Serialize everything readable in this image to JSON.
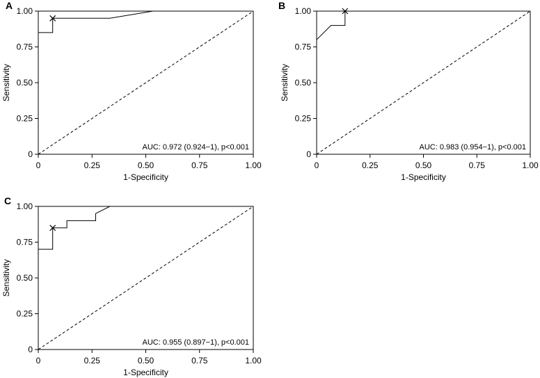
{
  "chart_data": [
    {
      "panel": "A",
      "type": "line",
      "title": "",
      "xlabel": "1-Specificity",
      "ylabel": "Sensitivity",
      "xlim": [
        0,
        1
      ],
      "ylim": [
        0,
        1
      ],
      "x_ticks": [
        0,
        0.25,
        0.5,
        0.75,
        1
      ],
      "x_tick_labels": [
        "0",
        "0.25",
        "0.50",
        "0.75",
        "1.00"
      ],
      "y_ticks": [
        0,
        0.25,
        0.5,
        0.75,
        1
      ],
      "y_tick_labels": [
        "0",
        "0.25",
        "0.50",
        "0.75",
        "1.00"
      ],
      "grid": false,
      "series": [
        {
          "name": "ROC curve",
          "x": [
            0,
            0,
            0.067,
            0.067,
            0.333,
            0.533,
            1
          ],
          "y": [
            0,
            0.85,
            0.85,
            0.95,
            0.95,
            1,
            1
          ]
        },
        {
          "name": "Reference line",
          "x": [
            0,
            1
          ],
          "y": [
            0,
            1
          ],
          "dashed": true
        }
      ],
      "marker": {
        "symbol": "x",
        "x": 0.067,
        "y": 0.95
      },
      "annotation": "AUC: 0.972 (0.924−1), p<0.001"
    },
    {
      "panel": "B",
      "type": "line",
      "title": "",
      "xlabel": "1-Specificity",
      "ylabel": "Sensitivity",
      "xlim": [
        0,
        1
      ],
      "ylim": [
        0,
        1
      ],
      "x_ticks": [
        0,
        0.25,
        0.5,
        0.75,
        1
      ],
      "x_tick_labels": [
        "0",
        "0.25",
        "0.50",
        "0.75",
        "1.00"
      ],
      "y_ticks": [
        0,
        0.25,
        0.5,
        0.75,
        1
      ],
      "y_tick_labels": [
        "0",
        "0.25",
        "0.50",
        "0.75",
        "1.00"
      ],
      "grid": false,
      "series": [
        {
          "name": "ROC curve",
          "x": [
            0,
            0,
            0.067,
            0.133,
            0.133,
            1
          ],
          "y": [
            0,
            0.8,
            0.9,
            0.9,
            1,
            1
          ]
        },
        {
          "name": "Reference line",
          "x": [
            0,
            1
          ],
          "y": [
            0,
            1
          ],
          "dashed": true
        }
      ],
      "marker": {
        "symbol": "x",
        "x": 0.133,
        "y": 1.0
      },
      "annotation": "AUC: 0.983 (0.954−1), p<0.001"
    },
    {
      "panel": "C",
      "type": "line",
      "title": "",
      "xlabel": "1-Specificity",
      "ylabel": "Sensitivity",
      "xlim": [
        0,
        1
      ],
      "ylim": [
        0,
        1
      ],
      "x_ticks": [
        0,
        0.25,
        0.5,
        0.75,
        1
      ],
      "x_tick_labels": [
        "0",
        "0.25",
        "0.50",
        "0.75",
        "1.00"
      ],
      "y_ticks": [
        0,
        0.25,
        0.5,
        0.75,
        1
      ],
      "y_tick_labels": [
        "0",
        "0.25",
        "0.50",
        "0.75",
        "1.00"
      ],
      "grid": false,
      "series": [
        {
          "name": "ROC curve",
          "x": [
            0,
            0,
            0.067,
            0.067,
            0.133,
            0.133,
            0.267,
            0.267,
            0.333,
            1
          ],
          "y": [
            0,
            0.7,
            0.7,
            0.85,
            0.85,
            0.9,
            0.9,
            0.95,
            1,
            1
          ]
        },
        {
          "name": "Reference line",
          "x": [
            0,
            1
          ],
          "y": [
            0,
            1
          ],
          "dashed": true
        }
      ],
      "marker": {
        "symbol": "x",
        "x": 0.067,
        "y": 0.85
      },
      "annotation": "AUC: 0.955 (0.897−1), p<0.001"
    }
  ]
}
